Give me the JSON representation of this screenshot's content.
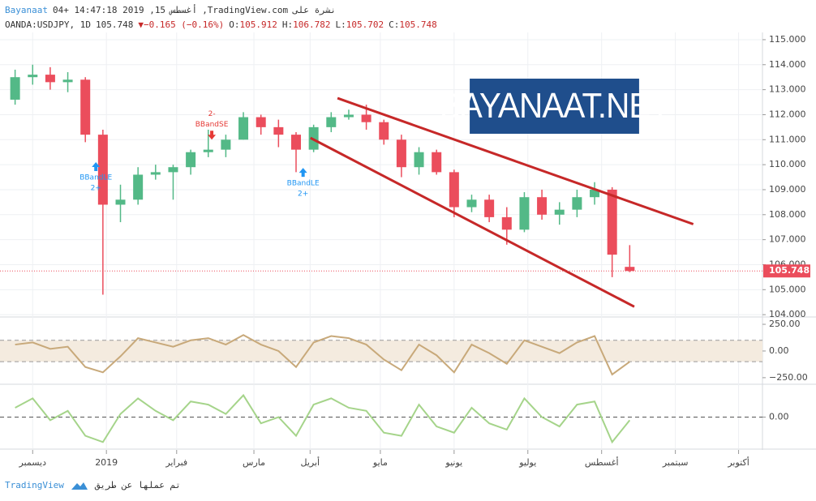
{
  "header": {
    "author": "Bayanaat",
    "stamp": "04+ 14:47:18 2019 ,15",
    "month": "أغسطس",
    "site": ",TradingView.com",
    "published_on": "نشرة على",
    "symbol": "OANDA:USDJPY, 1D",
    "last": "105.748",
    "arrow": "▼",
    "change": "−0.165 (−0.16%)",
    "o_label": "O:",
    "o": "105.912",
    "h_label": "H:",
    "h": "106.782",
    "l_label": "L:",
    "l": "105.702",
    "c_label": "C:",
    "c": "105.748"
  },
  "logo": "BAYANAAT.NET",
  "footer": {
    "brand": "TradingView",
    "made_by": "تم عملها عن طريق"
  },
  "chart_data": [
    {
      "type": "candlestick",
      "x": [
        2,
        7,
        12,
        17,
        22,
        27,
        32,
        37,
        42,
        47,
        52,
        57,
        62,
        67,
        72,
        77,
        82,
        87,
        92,
        97,
        102,
        107,
        112,
        117,
        122,
        127,
        132,
        137,
        142,
        147,
        152,
        157,
        162,
        167,
        172,
        177
      ],
      "open": [
        112.6,
        113.5,
        113.6,
        113.3,
        113.4,
        111.2,
        108.4,
        108.6,
        109.6,
        109.7,
        109.9,
        110.5,
        110.6,
        111.0,
        111.9,
        111.5,
        111.2,
        110.6,
        111.5,
        111.9,
        112.0,
        111.7,
        111.0,
        109.9,
        110.5,
        109.7,
        108.3,
        108.6,
        107.9,
        107.4,
        108.7,
        108.0,
        108.2,
        108.7,
        109.0,
        105.912
      ],
      "high": [
        113.8,
        114.0,
        113.9,
        113.7,
        113.5,
        111.4,
        109.2,
        109.9,
        110.0,
        110.0,
        110.6,
        111.4,
        111.2,
        112.1,
        112.0,
        111.8,
        111.3,
        111.6,
        112.1,
        112.2,
        112.4,
        111.8,
        111.2,
        110.7,
        110.6,
        109.8,
        108.8,
        108.8,
        108.3,
        108.9,
        109.0,
        108.5,
        109.0,
        109.3,
        109.1,
        106.782
      ],
      "low": [
        112.4,
        113.2,
        113.0,
        112.9,
        110.9,
        104.8,
        107.7,
        108.4,
        109.4,
        108.6,
        109.6,
        110.3,
        110.3,
        111.0,
        111.2,
        110.7,
        109.7,
        110.5,
        111.3,
        111.8,
        111.4,
        110.8,
        109.5,
        109.6,
        109.6,
        107.9,
        108.1,
        107.7,
        106.8,
        107.3,
        107.8,
        107.6,
        107.9,
        108.4,
        105.5,
        105.702
      ],
      "close": [
        113.5,
        113.6,
        113.3,
        113.4,
        111.2,
        108.4,
        108.6,
        109.6,
        109.7,
        109.9,
        110.5,
        110.6,
        111.0,
        111.9,
        111.5,
        111.2,
        110.6,
        111.5,
        111.9,
        112.0,
        111.7,
        111.0,
        109.9,
        110.5,
        109.7,
        108.3,
        108.6,
        107.9,
        107.4,
        108.7,
        108.0,
        108.2,
        108.7,
        109.0,
        106.4,
        105.748
      ],
      "up_color": "#53b987",
      "down_color": "#eb4d5c",
      "xlim": [
        -2.3,
        214.8
      ],
      "ylim": [
        103.94,
        115.29
      ],
      "xticks": [
        {
          "value": 7,
          "label": "ديسمبر"
        },
        {
          "value": 28,
          "label": "2019"
        },
        {
          "value": 48,
          "label": "فبراير"
        },
        {
          "value": 70,
          "label": "مارس"
        },
        {
          "value": 86,
          "label": "أبريل"
        },
        {
          "value": 106,
          "label": "مايو"
        },
        {
          "value": 127,
          "label": "يونيو"
        },
        {
          "value": 148,
          "label": "يوليو"
        },
        {
          "value": 169,
          "label": "أغسطس"
        },
        {
          "value": 190,
          "label": "سبتمبر"
        },
        {
          "value": 208,
          "label": "أكتوبر"
        }
      ],
      "yticks": [
        {
          "value": 104,
          "label": "104.000"
        },
        {
          "value": 105,
          "label": "105.000"
        },
        {
          "value": 106,
          "label": "106.000"
        },
        {
          "value": 107,
          "label": "107.000"
        },
        {
          "value": 108,
          "label": "108.000"
        },
        {
          "value": 109,
          "label": "109.000"
        },
        {
          "value": 110,
          "label": "110.000"
        },
        {
          "value": 111,
          "label": "111.000"
        },
        {
          "value": 112,
          "label": "112.000"
        },
        {
          "value": 113,
          "label": "113.000"
        },
        {
          "value": 114,
          "label": "114.000"
        },
        {
          "value": 115,
          "label": "115.000"
        }
      ],
      "grid": true,
      "trendlines": [
        {
          "x": [
            93.8,
            195.1
          ],
          "y": [
            112.66,
            107.62
          ]
        },
        {
          "x": [
            86.1,
            178.3
          ],
          "y": [
            111.07,
            104.32
          ]
        }
      ],
      "trend_color": "#c62828",
      "signals": [
        {
          "x": 25,
          "price": 110.1,
          "direction": "up",
          "text": "BBandLE",
          "sub": "2+"
        },
        {
          "x": 58,
          "price": 111.0,
          "direction": "down",
          "text": "BBandSE",
          "sub": "2-"
        },
        {
          "x": 84,
          "price": 109.87,
          "direction": "up",
          "text": "BBandLE",
          "sub": "2+"
        }
      ]
    },
    {
      "type": "line",
      "color": "#c8a97a",
      "band_color": "#f4ebdf",
      "x": [
        2,
        7,
        12,
        17,
        22,
        27,
        32,
        37,
        42,
        47,
        52,
        57,
        62,
        67,
        72,
        77,
        82,
        87,
        92,
        97,
        102,
        107,
        112,
        117,
        122,
        127,
        132,
        137,
        142,
        147,
        152,
        157,
        162,
        167,
        172,
        177
      ],
      "values": [
        60,
        80,
        20,
        40,
        -150,
        -200,
        -50,
        120,
        80,
        40,
        100,
        120,
        60,
        150,
        60,
        0,
        -150,
        80,
        140,
        120,
        60,
        -80,
        -180,
        60,
        -40,
        -200,
        60,
        -20,
        -120,
        100,
        40,
        -20,
        80,
        140,
        -220,
        -100
      ],
      "bands": [
        -100,
        100
      ],
      "ylim": [
        -304,
        311
      ],
      "yticks": [
        {
          "value": 250,
          "label": "250.00"
        },
        {
          "value": 0,
          "label": "0.00"
        },
        {
          "value": -250,
          "label": "−250.00"
        }
      ]
    },
    {
      "type": "line",
      "color": "#a5d48a",
      "x": [
        2,
        7,
        12,
        17,
        22,
        27,
        32,
        37,
        42,
        47,
        52,
        57,
        62,
        67,
        72,
        77,
        82,
        87,
        92,
        97,
        102,
        107,
        112,
        117,
        122,
        127,
        132,
        137,
        142,
        147,
        152,
        157,
        162,
        167,
        172,
        177
      ],
      "values": [
        0.3,
        0.6,
        -0.1,
        0.2,
        -0.6,
        -0.8,
        0.1,
        0.6,
        0.2,
        -0.1,
        0.5,
        0.4,
        0.1,
        0.7,
        -0.2,
        0.0,
        -0.6,
        0.4,
        0.6,
        0.3,
        0.2,
        -0.5,
        -0.6,
        0.4,
        -0.3,
        -0.5,
        0.3,
        -0.2,
        -0.4,
        0.6,
        0.0,
        -0.3,
        0.4,
        0.5,
        -0.8,
        -0.1
      ],
      "ylim": [
        -1,
        1
      ],
      "yticks": [
        {
          "value": 0,
          "label": "0.00"
        }
      ]
    }
  ]
}
